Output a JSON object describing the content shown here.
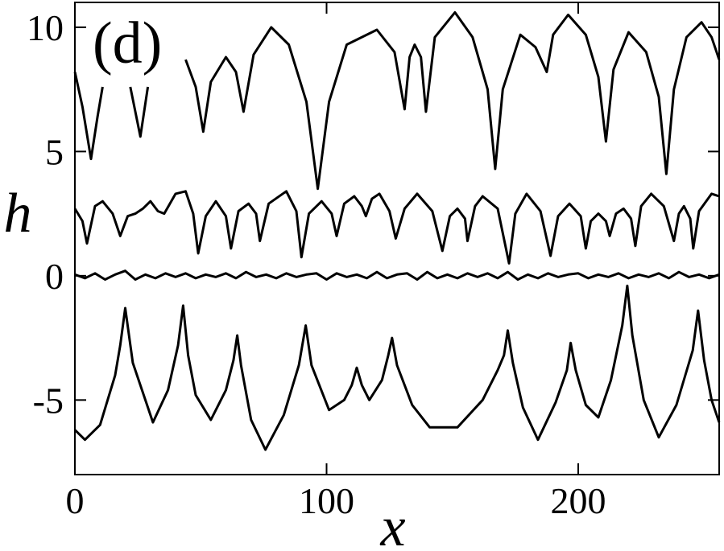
{
  "chart_data": {
    "type": "line",
    "panel_label": "(d)",
    "x_label": "x",
    "y_label": "h",
    "xlim": [
      0,
      256
    ],
    "ylim": [
      -8,
      11
    ],
    "xticks": [
      0,
      100,
      200
    ],
    "yticks": [
      -5,
      0,
      5,
      10
    ],
    "series": [
      {
        "color": "#000000",
        "x": [
          0,
          3,
          6.4,
          9,
          11,
          15,
          22,
          26,
          29,
          36,
          44,
          48,
          51,
          54,
          60,
          64,
          67,
          71,
          78,
          85,
          92,
          96.5,
          101,
          108,
          120,
          127,
          131,
          133,
          135,
          137.5,
          139.5,
          143,
          151,
          158,
          164,
          167,
          170,
          177,
          183,
          187.5,
          190,
          196,
          203,
          208,
          211,
          214,
          220,
          227,
          232,
          235,
          238,
          243,
          249,
          253,
          256
        ],
        "values": [
          8.2,
          6.8,
          4.7,
          6.4,
          7.6,
          null,
          7.6,
          5.6,
          7.6,
          null,
          8.7,
          7.6,
          5.8,
          7.8,
          8.8,
          8.2,
          6.6,
          8.9,
          10,
          9.3,
          7,
          3.5,
          7,
          9.3,
          9.9,
          9,
          6.7,
          8.8,
          9.3,
          8.8,
          6.6,
          9.6,
          10.6,
          9.6,
          7.5,
          4.3,
          7.5,
          9.7,
          9.2,
          8.2,
          9.7,
          10.5,
          9.7,
          8,
          5.4,
          8.3,
          9.8,
          9,
          7.2,
          4.1,
          7.5,
          9.6,
          10.2,
          9.6,
          8.7
        ]
      },
      {
        "color": "#000000",
        "x": [
          0,
          3,
          4.8,
          8,
          11,
          15,
          18,
          21,
          24,
          27,
          30,
          33,
          35.5,
          40,
          44,
          47,
          49,
          52,
          56,
          60,
          62,
          65,
          69,
          72,
          73.5,
          77,
          84,
          88,
          90,
          93,
          98,
          102,
          104,
          107,
          111,
          114,
          115.6,
          118,
          121,
          125,
          127.5,
          131,
          136,
          142,
          146,
          149,
          152,
          155,
          156,
          159,
          162,
          168,
          172.5,
          175,
          179.5,
          185,
          189,
          192,
          196.5,
          201,
          203,
          205,
          208,
          211,
          212.5,
          215,
          218,
          221,
          222.7,
          225,
          229,
          234,
          238,
          240,
          242,
          244.5,
          245.7,
          248,
          253,
          256
        ],
        "values": [
          2.7,
          2.2,
          1.3,
          2.8,
          3,
          2.5,
          1.6,
          2.4,
          2.5,
          2.7,
          3,
          2.6,
          2.5,
          3.3,
          3.4,
          2.5,
          0.9,
          2.4,
          3,
          2.4,
          1.1,
          2.6,
          2.9,
          2.5,
          1.4,
          2.9,
          3.4,
          2.6,
          0.75,
          2.5,
          3,
          2.5,
          1.6,
          2.9,
          3.2,
          2.8,
          2.4,
          3.1,
          3.3,
          2.6,
          1.5,
          2.7,
          3.3,
          2.6,
          1,
          2.4,
          2.7,
          2.3,
          1.4,
          2.8,
          3.2,
          2.7,
          0.5,
          2.5,
          3.3,
          2.6,
          0.8,
          2.4,
          2.9,
          2.4,
          1.1,
          2.2,
          2.5,
          2.2,
          1.6,
          2.5,
          2.7,
          2.3,
          1.2,
          2.8,
          3.3,
          2.8,
          1.4,
          2.5,
          2.8,
          2.3,
          1.1,
          2.6,
          3.3,
          3.2
        ]
      },
      {
        "color": "#000000",
        "x": [
          0,
          4,
          8,
          12,
          16,
          20,
          24,
          28,
          32,
          36,
          40,
          44,
          48,
          52,
          56,
          60,
          64,
          68,
          72,
          76,
          80,
          84,
          88,
          92,
          96,
          100,
          104,
          108,
          112,
          116,
          120,
          124,
          128,
          132,
          136,
          140,
          144,
          148,
          152,
          156,
          160,
          164,
          168,
          172,
          176,
          180,
          184,
          188,
          192,
          196,
          200,
          204,
          208,
          212,
          216,
          220,
          224,
          228,
          232,
          236,
          240,
          244,
          248,
          252,
          256
        ],
        "values": [
          0.05,
          -0.1,
          0.1,
          -0.15,
          0.05,
          0.2,
          -0.15,
          0.05,
          -0.1,
          0.1,
          -0.05,
          0.1,
          -0.1,
          0.05,
          -0.05,
          0.1,
          -0.1,
          0.15,
          -0.05,
          0.05,
          -0.1,
          0.1,
          -0.05,
          0.05,
          0.1,
          -0.15,
          0.1,
          -0.05,
          0.05,
          -0.1,
          0.15,
          -0.1,
          0.05,
          0.1,
          -0.15,
          0.15,
          -0.1,
          0.05,
          -0.1,
          0.1,
          -0.05,
          0.1,
          -0.1,
          0.15,
          -0.15,
          0.05,
          -0.1,
          0.1,
          -0.05,
          0.05,
          0.1,
          -0.1,
          0.05,
          -0.05,
          0.1,
          -0.1,
          0.05,
          -0.05,
          0.1,
          -0.1,
          0.15,
          -0.05,
          0.05,
          -0.1,
          0.05
        ]
      },
      {
        "color": "#000000",
        "x": [
          0,
          4,
          10,
          16,
          18,
          20,
          23,
          31,
          37,
          41,
          43,
          45,
          48,
          54,
          60,
          63,
          64.5,
          66,
          70,
          75.7,
          83,
          89,
          91.7,
          94,
          101,
          107,
          110,
          112,
          114,
          117,
          122,
          124.5,
          126,
          128,
          134,
          141,
          152,
          162,
          168,
          170.5,
          172,
          174,
          178,
          184,
          191,
          195.5,
          197,
          199,
          203,
          208,
          213,
          217.5,
          219.5,
          221.5,
          226,
          232,
          239,
          245.5,
          247.6,
          250,
          253,
          256
        ],
        "values": [
          -6.2,
          -6.6,
          -6,
          -4,
          -2.8,
          -1.3,
          -3.5,
          -5.9,
          -4.6,
          -2.8,
          -1.2,
          -3.2,
          -4.8,
          -5.8,
          -4.6,
          -3.4,
          -2.4,
          -3.6,
          -5.8,
          -7,
          -5.6,
          -3.6,
          -2,
          -3.6,
          -5.4,
          -5,
          -4.4,
          -3.7,
          -4.4,
          -5,
          -4.2,
          -3.2,
          -2.5,
          -3.6,
          -5.2,
          -6.1,
          -6.1,
          -5,
          -3.8,
          -3.2,
          -2.2,
          -3.5,
          -5.3,
          -6.6,
          -5.1,
          -3.8,
          -2.7,
          -3.8,
          -5.2,
          -5.7,
          -4.2,
          -2,
          -0.4,
          -2.4,
          -5,
          -6.5,
          -5.2,
          -3,
          -1.4,
          -3.4,
          -5,
          -5.9
        ]
      }
    ]
  }
}
